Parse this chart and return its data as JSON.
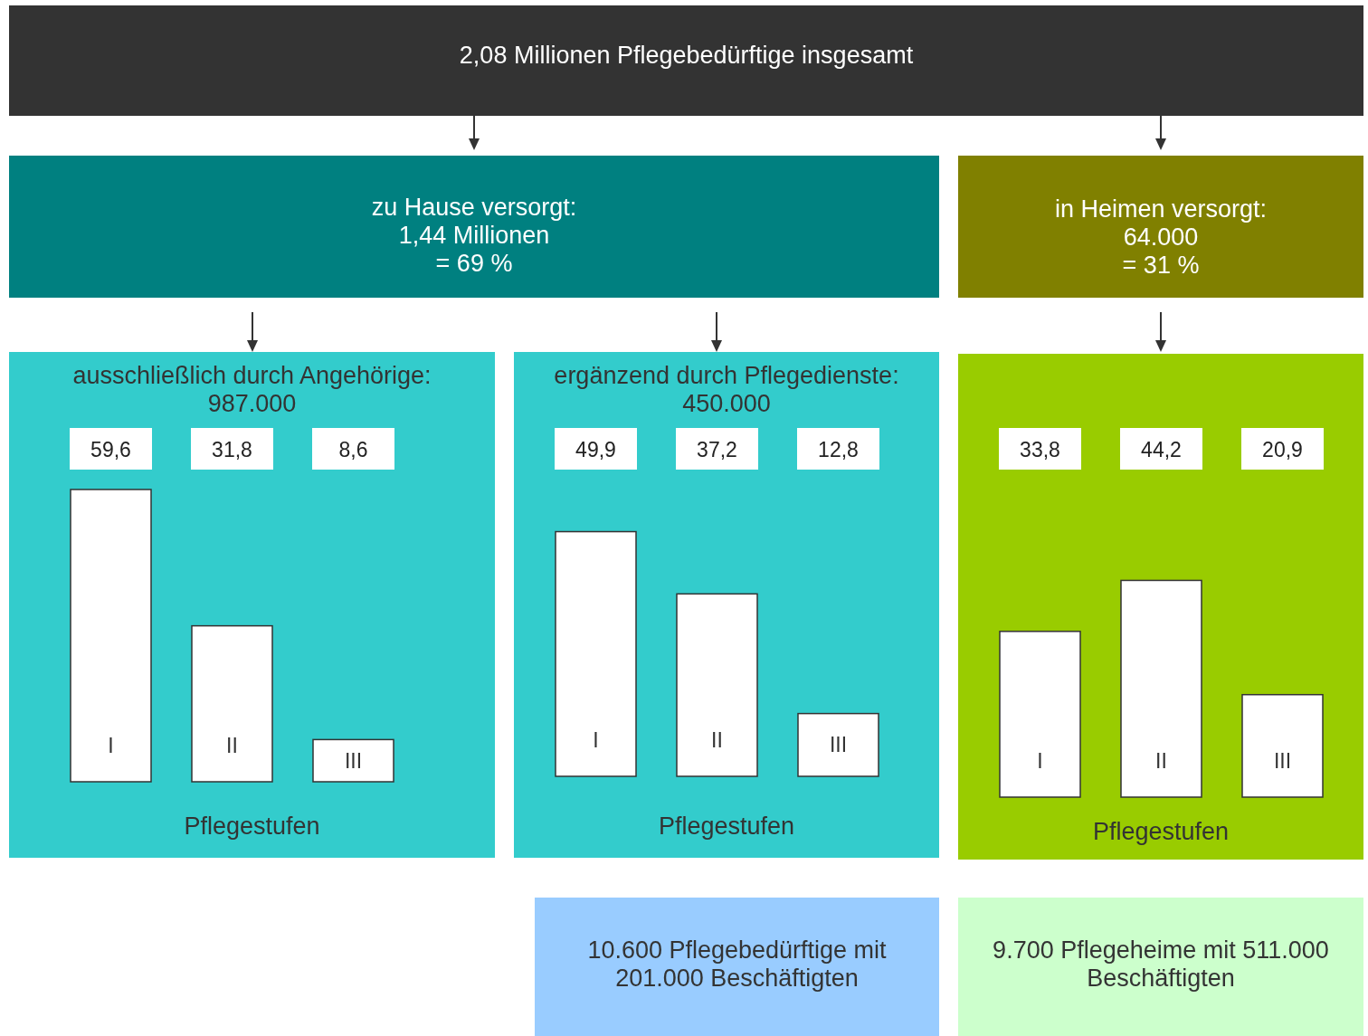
{
  "chart_data": [
    {
      "type": "other",
      "title": "2,08 Millionen Pflegebedürftige insgesamt"
    },
    {
      "type": "other",
      "title": "zu Hause versorgt:",
      "annotations": [
        "1,44 Millionen",
        "= 69 %"
      ]
    },
    {
      "type": "other",
      "title": "in Heimen versorgt:",
      "annotations": [
        "64.000",
        "= 31 %"
      ]
    },
    {
      "type": "bar",
      "title": "ausschließlich durch Angehörige:",
      "subtitle": "987.000",
      "categories": [
        "I",
        "II",
        "III"
      ],
      "values": [
        59.6,
        31.8,
        8.6
      ],
      "value_labels": [
        "59,6",
        "31,8",
        "8,6"
      ],
      "color": "#ffffff",
      "xlabel": "Pflegestufen"
    },
    {
      "type": "bar",
      "title": "ergänzend durch Pflegedienste:",
      "subtitle": "450.000",
      "categories": [
        "I",
        "II",
        "III"
      ],
      "values": [
        49.9,
        37.2,
        12.8
      ],
      "value_labels": [
        "49,9",
        "37,2",
        "12,8"
      ],
      "color": "#ffffff",
      "xlabel": "Pflegestufen"
    },
    {
      "type": "bar",
      "categories": [
        "I",
        "II",
        "III"
      ],
      "values": [
        33.8,
        44.2,
        20.9
      ],
      "value_labels": [
        "33,8",
        "44,2",
        "20,9"
      ],
      "color": "#ffffff",
      "xlabel": "Pflegestufen"
    },
    {
      "type": "other",
      "title": "10.600 Pflegebedürftige mit 201.000 Beschäftigten"
    },
    {
      "type": "other",
      "title": "9.700 Pflegeheime mit 511.000 Beschäftigten"
    }
  ]
}
